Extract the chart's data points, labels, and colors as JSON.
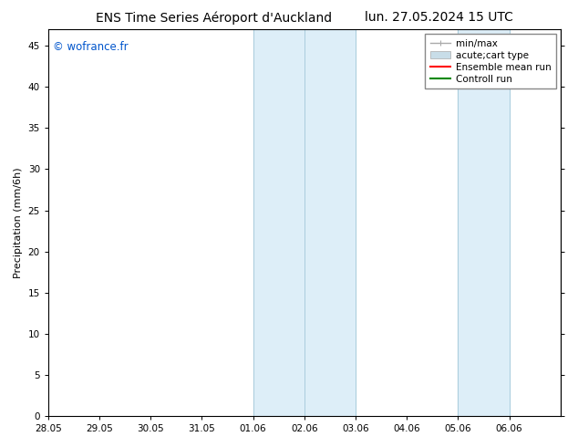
{
  "title_left": "ENS Time Series Aéroport d'Auckland",
  "title_right": "lun. 27.05.2024 15 UTC",
  "ylabel": "Precipitation (mm/6h)",
  "watermark": "© wofrance.fr",
  "watermark_color": "#0055cc",
  "xlim_start": 0,
  "xlim_end": 40,
  "ylim": [
    0,
    47
  ],
  "yticks": [
    0,
    5,
    10,
    15,
    20,
    25,
    30,
    35,
    40,
    45
  ],
  "xtick_labels": [
    "28.05",
    "29.05",
    "30.05",
    "31.05",
    "01.06",
    "02.06",
    "03.06",
    "04.06",
    "05.06",
    "06.06"
  ],
  "xtick_positions": [
    0,
    4,
    8,
    12,
    16,
    20,
    24,
    28,
    32,
    36
  ],
  "shaded_regions": [
    {
      "xmin": 16,
      "xmax": 20,
      "color": "#ddeef8"
    },
    {
      "xmin": 20,
      "xmax": 24,
      "color": "#ddeef8"
    },
    {
      "xmin": 32,
      "xmax": 36,
      "color": "#ddeef8"
    }
  ],
  "shaded_border_color": "#aaccdd",
  "legend_entries": [
    {
      "label": "min/max",
      "color": "#aaaaaa",
      "lw": 1.0,
      "type": "minmax"
    },
    {
      "label": "acute;cart type",
      "color": "#c8dde8",
      "lw": 7,
      "type": "fill"
    },
    {
      "label": "Ensemble mean run",
      "color": "#ff0000",
      "lw": 1.5,
      "type": "line"
    },
    {
      "label": "Controll run",
      "color": "#008800",
      "lw": 1.5,
      "type": "line"
    }
  ],
  "bg_color": "#ffffff",
  "title_fontsize": 10,
  "axis_fontsize": 8,
  "tick_fontsize": 7.5,
  "legend_fontsize": 7.5
}
